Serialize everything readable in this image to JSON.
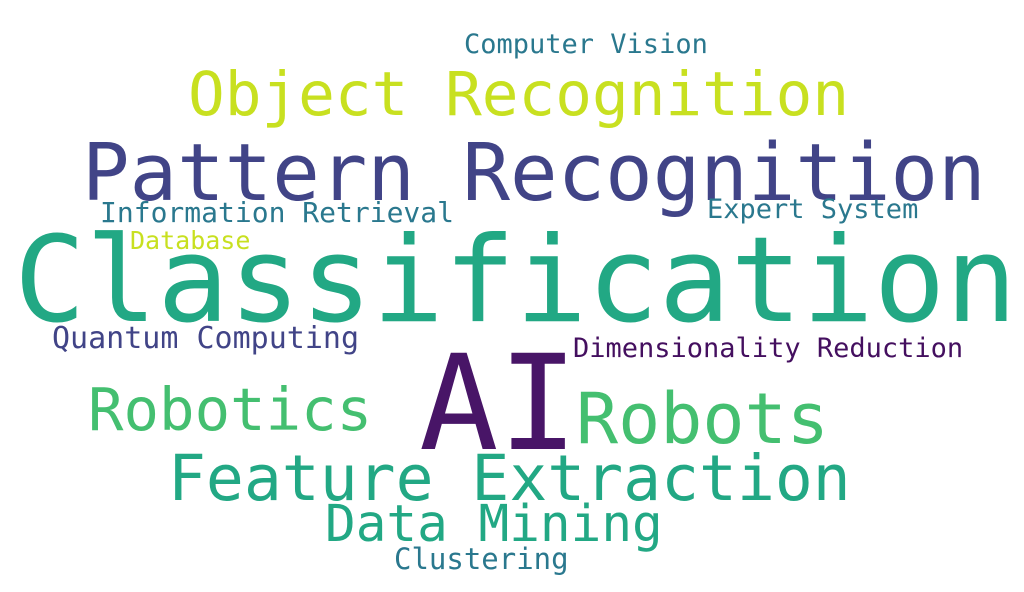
{
  "words": [
    {
      "text": "Computer Vision",
      "color": "#2a788e"
    },
    {
      "text": "Object Recognition",
      "color": "#c8e020"
    },
    {
      "text": "Pattern Recognition",
      "color": "#414487"
    },
    {
      "text": "Information Retrieval",
      "color": "#2a788e"
    },
    {
      "text": "Expert System",
      "color": "#2a788e"
    },
    {
      "text": "Database",
      "color": "#c8e020"
    },
    {
      "text": "Classification",
      "color": "#22a884"
    },
    {
      "text": "Quantum Computing",
      "color": "#414487"
    },
    {
      "text": "Dimensionality Reduction",
      "color": "#440f5f"
    },
    {
      "text": "Robotics",
      "color": "#44bf70"
    },
    {
      "text": "AI",
      "color": "#481567"
    },
    {
      "text": "Robots",
      "color": "#44bf70"
    },
    {
      "text": "Feature Extraction",
      "color": "#22a884"
    },
    {
      "text": "Data Mining",
      "color": "#22a884"
    },
    {
      "text": "Clustering",
      "color": "#2a788e"
    }
  ]
}
